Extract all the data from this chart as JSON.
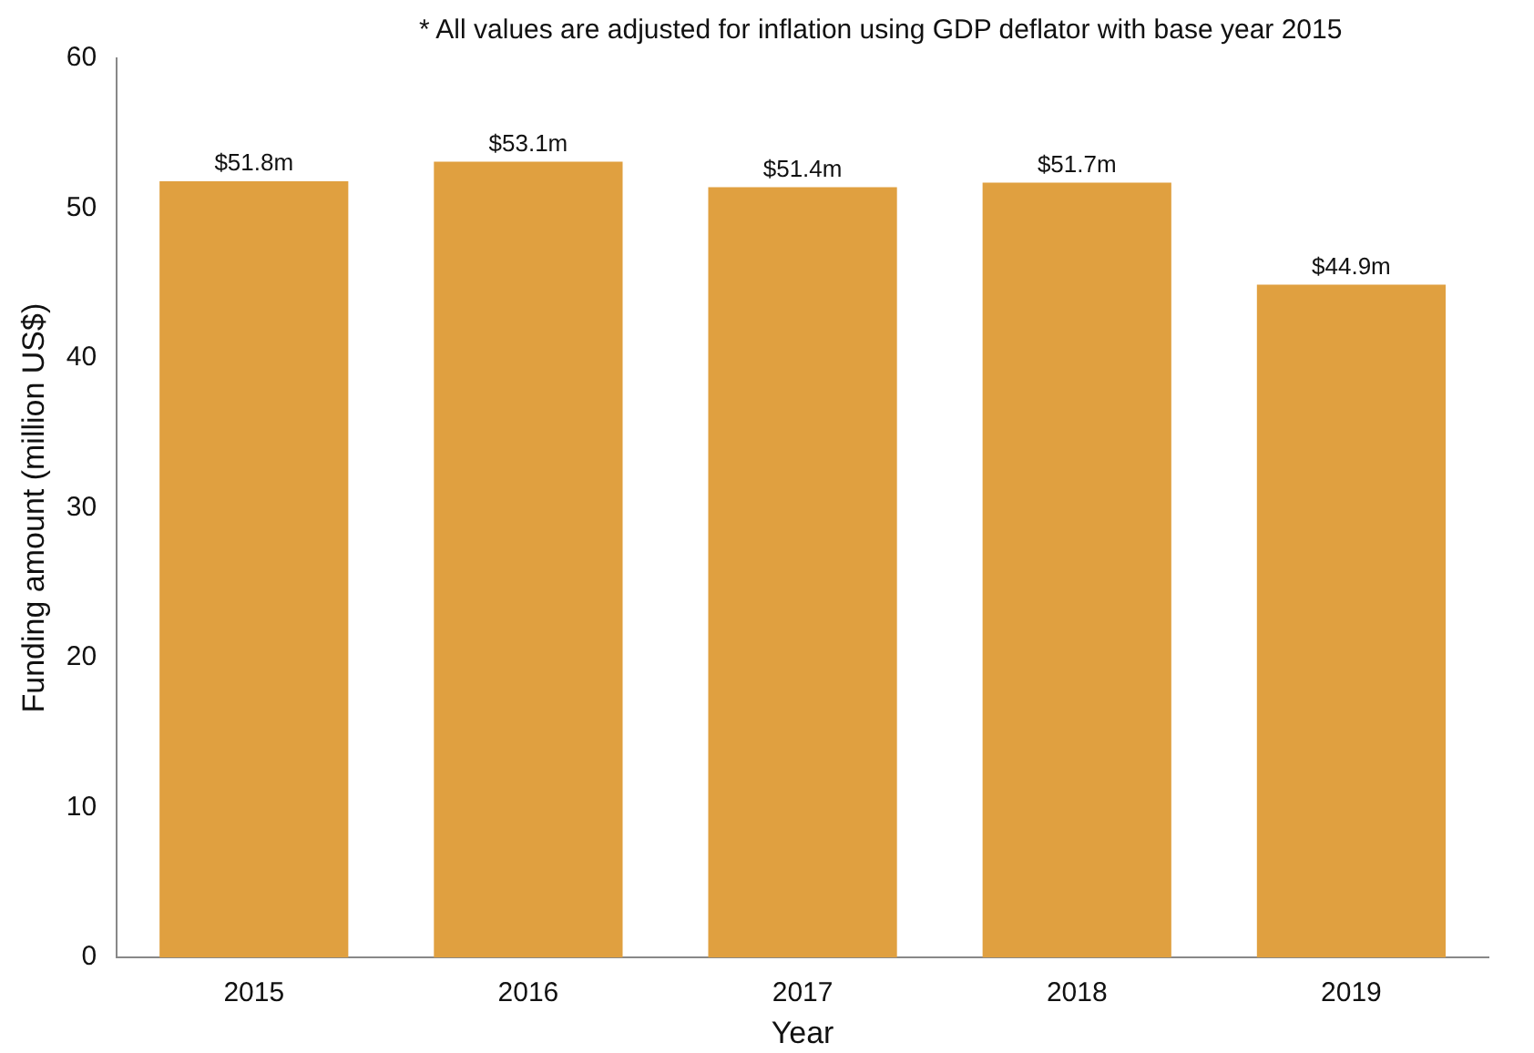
{
  "chart_data": {
    "type": "bar",
    "xlabel": "Year",
    "ylabel": "Funding amount (million US$)",
    "annotations": [
      "*  All values are adjusted for inflation using GDP deflator with base year 2015"
    ],
    "categories": [
      "2015",
      "2016",
      "2017",
      "2018",
      "2019"
    ],
    "values": [
      51.8,
      53.1,
      51.4,
      51.7,
      44.9
    ],
    "value_labels": [
      "$51.8m",
      "$53.1m",
      "$51.4m",
      "$51.7m",
      "$44.9m"
    ],
    "color": "#e0a040",
    "ylim": [
      0,
      60
    ],
    "yticks": [
      0,
      10,
      20,
      30,
      40,
      50,
      60
    ],
    "grid": false,
    "legend": false
  }
}
